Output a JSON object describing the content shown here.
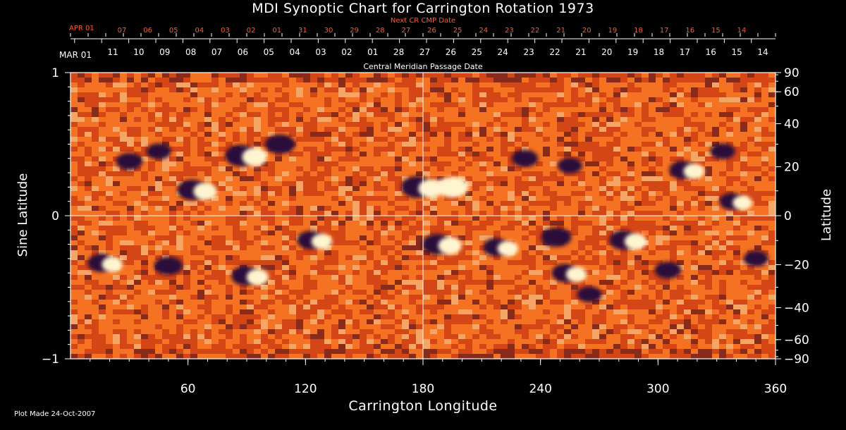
{
  "chart_data": {
    "type": "heatmap",
    "title": "MDI Synoptic Chart for Carrington Rotation 1973",
    "xlabel": "Carrington Longitude",
    "ylabel_left": "Sine Latitude",
    "ylabel_right": "Latitude",
    "xlim": [
      0,
      360
    ],
    "ylim": [
      -1,
      1
    ],
    "x_ticks": [
      60,
      120,
      180,
      240,
      300,
      360
    ],
    "y_ticks_left": [
      {
        "value": 1,
        "label": "1"
      },
      {
        "value": 0,
        "label": "0"
      },
      {
        "value": -1,
        "label": "−1"
      }
    ],
    "y_ticks_right": [
      {
        "deg": 90,
        "label": "90"
      },
      {
        "deg": 60,
        "label": "60"
      },
      {
        "deg": 40,
        "label": "40"
      },
      {
        "deg": 20,
        "label": "20"
      },
      {
        "deg": 0,
        "label": "0"
      },
      {
        "deg": -20,
        "label": "−20"
      },
      {
        "deg": -40,
        "label": "−40"
      },
      {
        "deg": -60,
        "label": "−60"
      },
      {
        "deg": -90,
        "label": "−90"
      }
    ],
    "grid_lines": {
      "vertical_at": 180,
      "horizontal_at": 0
    },
    "central_meridian_axis": {
      "label": "Central Meridian Passage Date",
      "start_label": "MAR 01",
      "dates": [
        "11",
        "10",
        "09",
        "08",
        "07",
        "06",
        "05",
        "04",
        "03",
        "02",
        "01",
        "28",
        "27",
        "26",
        "25",
        "24",
        "23",
        "22",
        "21",
        "20",
        "19",
        "18",
        "17",
        "16",
        "15",
        "14"
      ]
    },
    "next_cr_axis": {
      "label": "Next CR CMP Date",
      "start_label": "APR 01",
      "dates": [
        "07",
        "06",
        "05",
        "04",
        "03",
        "02",
        "01",
        "31",
        "30",
        "29",
        "28",
        "27",
        "26",
        "25",
        "24",
        "23",
        "22",
        "21",
        "20",
        "19",
        "18",
        "17",
        "16",
        "15",
        "14"
      ]
    },
    "magnetic_regions": [
      {
        "lon": 90,
        "sinlat": 0.42,
        "polarity": "mixed",
        "strength": 1.0
      },
      {
        "lon": 107,
        "sinlat": 0.5,
        "polarity": "negative",
        "strength": 0.8
      },
      {
        "lon": 65,
        "sinlat": 0.18,
        "polarity": "mixed",
        "strength": 0.9
      },
      {
        "lon": 30,
        "sinlat": 0.38,
        "polarity": "negative",
        "strength": 0.6
      },
      {
        "lon": 45,
        "sinlat": 0.45,
        "polarity": "negative",
        "strength": 0.5
      },
      {
        "lon": 180,
        "sinlat": 0.2,
        "polarity": "mixed",
        "strength": 1.0
      },
      {
        "lon": 195,
        "sinlat": 0.2,
        "polarity": "positive",
        "strength": 0.9
      },
      {
        "lon": 232,
        "sinlat": 0.4,
        "polarity": "negative",
        "strength": 0.6
      },
      {
        "lon": 255,
        "sinlat": 0.35,
        "polarity": "negative",
        "strength": 0.5
      },
      {
        "lon": 315,
        "sinlat": 0.32,
        "polarity": "mixed",
        "strength": 0.7
      },
      {
        "lon": 333,
        "sinlat": 0.45,
        "polarity": "negative",
        "strength": 0.5
      },
      {
        "lon": 340,
        "sinlat": 0.1,
        "polarity": "mixed",
        "strength": 0.6
      },
      {
        "lon": 125,
        "sinlat": -0.17,
        "polarity": "mixed",
        "strength": 0.7
      },
      {
        "lon": 92,
        "sinlat": -0.42,
        "polarity": "mixed",
        "strength": 0.8
      },
      {
        "lon": 50,
        "sinlat": -0.35,
        "polarity": "negative",
        "strength": 0.7
      },
      {
        "lon": 18,
        "sinlat": -0.33,
        "polarity": "mixed",
        "strength": 0.7
      },
      {
        "lon": 190,
        "sinlat": -0.2,
        "polarity": "mixed",
        "strength": 0.9
      },
      {
        "lon": 220,
        "sinlat": -0.22,
        "polarity": "mixed",
        "strength": 0.7
      },
      {
        "lon": 248,
        "sinlat": -0.15,
        "polarity": "negative",
        "strength": 0.8
      },
      {
        "lon": 255,
        "sinlat": -0.4,
        "polarity": "mixed",
        "strength": 0.7
      },
      {
        "lon": 285,
        "sinlat": -0.17,
        "polarity": "mixed",
        "strength": 0.8
      },
      {
        "lon": 305,
        "sinlat": -0.38,
        "polarity": "negative",
        "strength": 0.6
      },
      {
        "lon": 265,
        "sinlat": -0.55,
        "polarity": "negative",
        "strength": 0.5
      },
      {
        "lon": 350,
        "sinlat": -0.3,
        "polarity": "negative",
        "strength": 0.5
      }
    ],
    "colormap": [
      "#3a0a1e",
      "#c23a12",
      "#ff8a2a",
      "#ffe9a8"
    ]
  },
  "footer": {
    "plot_made": "Plot Made 24-Oct-2007"
  }
}
